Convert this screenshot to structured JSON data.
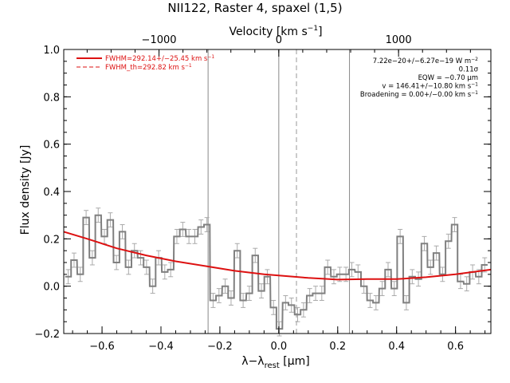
{
  "chart_data": {
    "type": "line",
    "title": "NII122, Raster 4, spaxel (1,5)",
    "xlabel": "λ−λ",
    "xlabel_sub": "rest",
    "xlabel_unit": " [μm]",
    "ylabel": "Flux density [Jy]",
    "top_xlabel": "Velocity [km s",
    "top_xlabel_sup": "−1",
    "top_xlabel_close": "]",
    "xlim": [
      -0.73,
      0.72
    ],
    "ylim": [
      -0.2,
      1.0
    ],
    "x_ticks": [
      -0.6,
      -0.4,
      -0.2,
      0.0,
      0.2,
      0.4,
      0.6
    ],
    "x_tick_labels": [
      "−0.6",
      "−0.4",
      "−0.2",
      "0.0",
      "0.2",
      "0.4",
      "0.6"
    ],
    "y_ticks": [
      -0.2,
      0.0,
      0.2,
      0.4,
      0.6,
      0.8,
      1.0
    ],
    "y_tick_labels": [
      "−0.2",
      "0.0",
      "0.2",
      "0.4",
      "0.6",
      "0.8",
      "1.0"
    ],
    "top_ticks_velocity": [
      -1000,
      0,
      1000
    ],
    "top_tick_labels": [
      "−1000",
      "0",
      "1000"
    ],
    "rest_wavelength_um": 121.9,
    "vertical_lines_solid": [
      -0.24,
      0.0,
      0.24
    ],
    "vertical_line_dashed": 0.06,
    "legend": [
      {
        "label": "FWHM=292.14+/−25.45 km s",
        "sup": "−1",
        "style": "solid"
      },
      {
        "label": "FWHM_th=292.82 km s",
        "sup": "−1",
        "style": "dashed"
      }
    ],
    "annotations": [
      {
        "text": "7.22e−20+/−6.27e−19 W m",
        "sup": "−2"
      },
      {
        "text": "0.11σ",
        "sup": ""
      },
      {
        "text": "EQW = −0.70 μm",
        "sup": ""
      },
      {
        "text": "v = 146.41+/−10.80 km s",
        "sup": "−1"
      },
      {
        "text": "Broadening = 0.00+/−0.00 km s",
        "sup": "−1"
      }
    ],
    "series": [
      {
        "style": "step",
        "color": "#808080",
        "x": [
          -0.715,
          -0.695,
          -0.674,
          -0.654,
          -0.633,
          -0.613,
          -0.592,
          -0.572,
          -0.551,
          -0.531,
          -0.51,
          -0.49,
          -0.469,
          -0.449,
          -0.428,
          -0.408,
          -0.387,
          -0.367,
          -0.346,
          -0.326,
          -0.305,
          -0.285,
          -0.264,
          -0.244,
          -0.223,
          -0.203,
          -0.182,
          -0.162,
          -0.141,
          -0.121,
          -0.1,
          -0.08,
          -0.059,
          -0.039,
          -0.018,
          0.002,
          0.023,
          0.043,
          0.064,
          0.084,
          0.105,
          0.125,
          0.146,
          0.166,
          0.187,
          0.207,
          0.228,
          0.248,
          0.269,
          0.289,
          0.31,
          0.33,
          0.351,
          0.371,
          0.392,
          0.412,
          0.433,
          0.453,
          0.474,
          0.494,
          0.515,
          0.535,
          0.556,
          0.576,
          0.597,
          0.617,
          0.638,
          0.658,
          0.679,
          0.699
        ],
        "y": [
          0.04,
          0.11,
          0.05,
          0.29,
          0.12,
          0.3,
          0.21,
          0.28,
          0.1,
          0.23,
          0.08,
          0.15,
          0.12,
          0.08,
          0.0,
          0.12,
          0.06,
          0.07,
          0.21,
          0.24,
          0.21,
          0.21,
          0.25,
          0.26,
          -0.06,
          -0.04,
          0.0,
          -0.05,
          0.15,
          -0.06,
          -0.03,
          0.13,
          -0.02,
          0.04,
          -0.09,
          -0.18,
          -0.07,
          -0.08,
          -0.12,
          -0.1,
          -0.04,
          -0.03,
          -0.03,
          0.08,
          0.04,
          0.05,
          0.05,
          0.07,
          0.06,
          0.0,
          -0.06,
          -0.07,
          -0.01,
          0.07,
          -0.01,
          0.21,
          -0.07,
          0.04,
          0.03,
          0.18,
          0.08,
          0.14,
          0.05,
          0.19,
          0.26,
          0.02,
          0.01,
          0.06,
          0.04,
          0.09
        ],
        "err": 0.03
      },
      {
        "style": "smooth",
        "color": "#dd1111",
        "x": [
          -0.73,
          -0.65,
          -0.55,
          -0.45,
          -0.35,
          -0.25,
          -0.15,
          -0.05,
          0.0,
          0.05,
          0.1,
          0.2,
          0.3,
          0.4,
          0.5,
          0.6,
          0.72
        ],
        "y": [
          0.23,
          0.2,
          0.16,
          0.13,
          0.105,
          0.085,
          0.065,
          0.05,
          0.045,
          0.04,
          0.035,
          0.028,
          0.03,
          0.03,
          0.038,
          0.05,
          0.07
        ]
      }
    ]
  }
}
